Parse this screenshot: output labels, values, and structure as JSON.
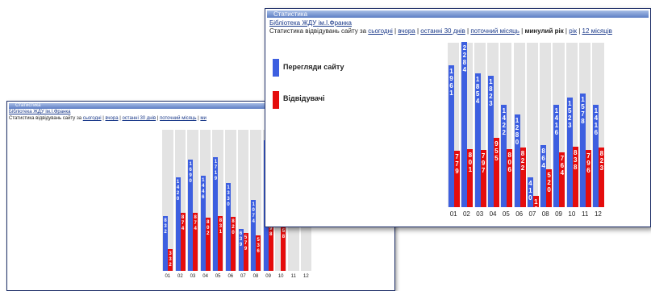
{
  "back": {
    "title": "Статистика",
    "library_link": "Бібліотека ЖДУ ім.І.Франка",
    "stats_prefix": "Статистика відвідувань сайту за",
    "periods": [
      "сьогодні",
      "вчора",
      "останні 30 днів",
      "поточний місяць",
      "ми"
    ],
    "months": [
      "01",
      "02",
      "03",
      "04",
      "05",
      "06",
      "07",
      "08",
      "09",
      "10",
      "11",
      "12"
    ],
    "views": [
      832,
      1420,
      1690,
      1446,
      1719,
      1330,
      639,
      1074,
      1974,
      null,
      null,
      null
    ],
    "visitors": [
      332,
      874,
      874,
      802,
      831,
      820,
      579,
      536,
      798,
      758,
      null,
      null
    ],
    "view_labels": [
      "832",
      "1420",
      "1690",
      "1446",
      "1719",
      "1330",
      "639",
      "1074",
      "1974",
      "",
      "",
      ""
    ],
    "visitor_labels": [
      "332",
      "874",
      "874",
      "802",
      "831",
      "820",
      "579",
      "536",
      "798",
      "758",
      "",
      ""
    ]
  },
  "front": {
    "title": "Статистика",
    "library_link": "Бібліотека ЖДУ ім.І.Франка",
    "stats_prefix": "Статистика відвідувань сайту за",
    "periods": [
      "сьогодні",
      "вчора",
      "останні 30 днів",
      "поточний місяць",
      "минулий рік",
      "рік",
      "12 місяців"
    ],
    "active_period": "минулий рік",
    "legend_views": "Перегляди сайту",
    "legend_visitors": "Відвідувачі",
    "color_views": "#3d5fe0",
    "color_visitors": "#e50d0d",
    "months": [
      "01",
      "02",
      "03",
      "04",
      "05",
      "06",
      "07",
      "08",
      "09",
      "10",
      "11",
      "12"
    ],
    "views": [
      1961,
      2284,
      1854,
      1823,
      1422,
      1280,
      410,
      864,
      1416,
      1523,
      1578,
      1416
    ],
    "visitors": [
      779,
      801,
      797,
      955,
      806,
      822,
      160,
      520,
      764,
      838,
      796,
      823
    ],
    "view_labels": [
      "1961",
      "2284",
      "1854",
      "1823",
      "1422",
      "1280",
      "410",
      "864",
      "1416",
      "1523",
      "1578",
      "1416"
    ],
    "visitor_labels": [
      "779",
      "801",
      "797",
      "955",
      "806",
      "822",
      "160",
      "520",
      "764",
      "838",
      "796",
      "823"
    ]
  }
}
